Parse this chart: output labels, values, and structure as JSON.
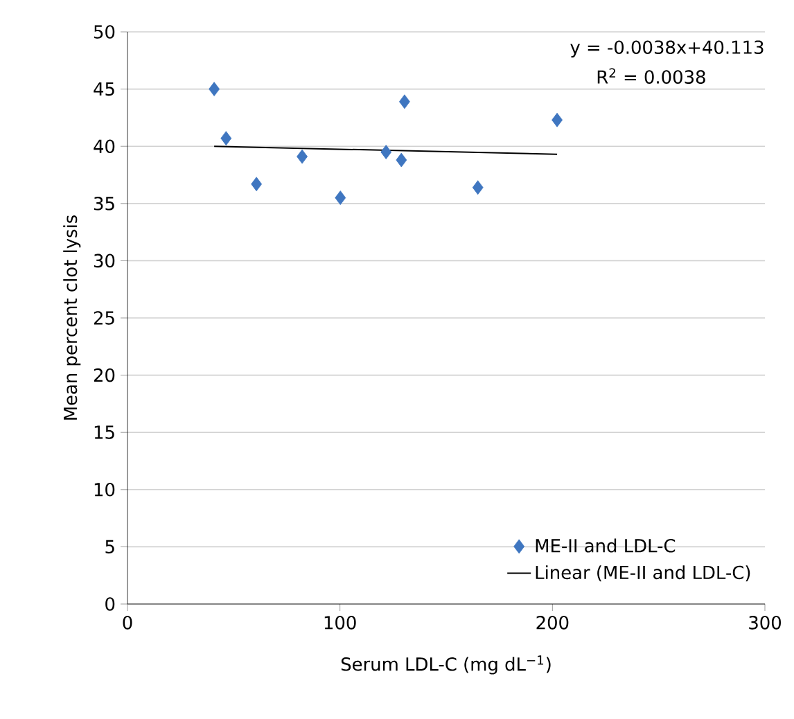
{
  "chart_data": {
    "type": "scatter",
    "xlabel": "Serum LDL-C (mg dL$^{−1}$)",
    "ylabel": "Mean percent clot lysis",
    "xlim": [
      0,
      300
    ],
    "ylim": [
      0,
      50
    ],
    "xticks": [
      0,
      100,
      200,
      300
    ],
    "yticks": [
      0,
      5,
      10,
      15,
      20,
      25,
      30,
      35,
      40,
      45,
      50
    ],
    "grid": "y",
    "legend": "bottom right",
    "annotations": [
      "y = -0.0038x+40.113",
      "R$^{2}$ = 0.0038"
    ],
    "series": [
      {
        "name": "ME-II and LDL-C",
        "marker": "diamond",
        "color": "#3f76c0",
        "x": [
          40.8,
          46.4,
          60.7,
          82.2,
          100.2,
          121.7,
          128.9,
          130.4,
          164.9,
          202.2
        ],
        "values": [
          45.0,
          40.7,
          36.7,
          39.1,
          35.5,
          39.5,
          38.8,
          43.9,
          36.4,
          42.3
        ]
      },
      {
        "name": "Linear (ME-II and LDL-C)",
        "type": "line",
        "marker": "none",
        "line_style": "solid",
        "color": "#000000",
        "x": [
          40.8,
          202.2
        ],
        "values": [
          40.0,
          39.3
        ]
      }
    ]
  }
}
